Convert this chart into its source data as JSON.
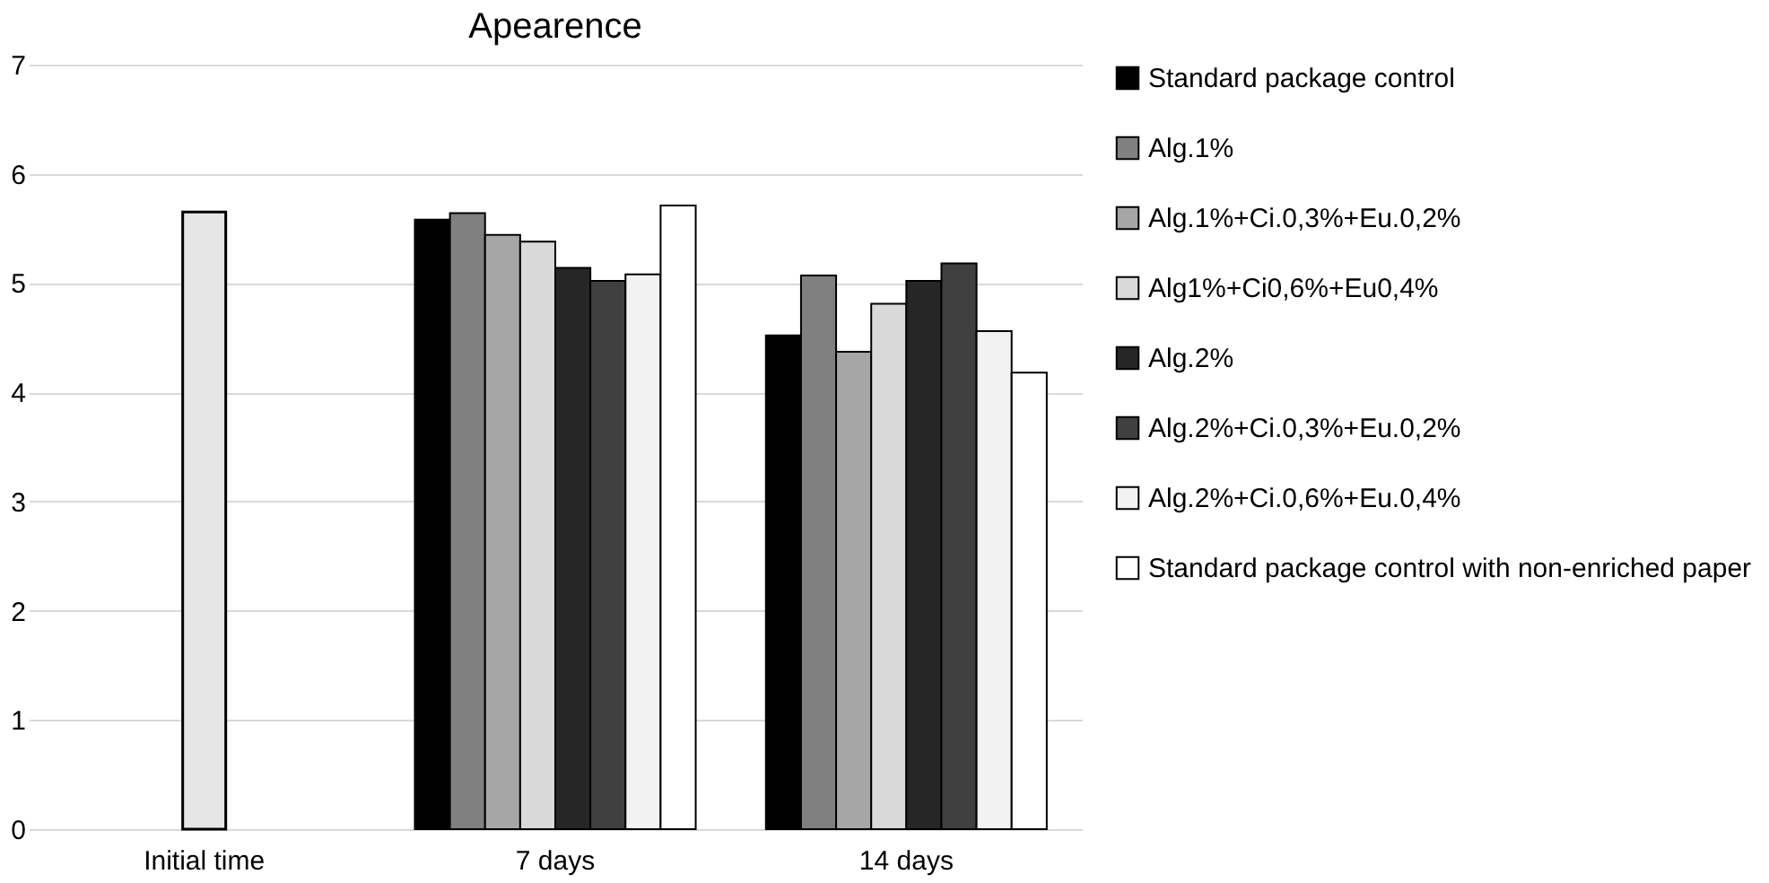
{
  "chart_data": {
    "type": "bar",
    "title": "Apearence",
    "categories": [
      "Initial time",
      "7 days",
      "14 days"
    ],
    "series": [
      {
        "name": "Standard package control",
        "color": "#000000",
        "values": [
          null,
          5.58,
          4.52
        ]
      },
      {
        "name": "Alg.1%",
        "color": "#808080",
        "values": [
          null,
          5.64,
          5.07
        ]
      },
      {
        "name": "Alg.1%+Ci.0,3%+Eu.0,2%",
        "color": "#a6a6a6",
        "values": [
          null,
          5.44,
          4.37
        ]
      },
      {
        "name": "Alg1%+Ci0,6%+Eu0,4%",
        "color": "#d9d9d9",
        "values": [
          null,
          5.38,
          4.81
        ]
      },
      {
        "name": "Alg.2%",
        "color": "#262626",
        "values": [
          null,
          5.14,
          5.02
        ]
      },
      {
        "name": "Alg.2%+Ci.0,3%+Eu.0,2%",
        "color": "#404040",
        "values": [
          null,
          5.02,
          5.18
        ]
      },
      {
        "name": "Alg.2%+Ci.0,6%+Eu.0,4%",
        "color": "#f2f2f2",
        "values": [
          null,
          5.08,
          4.56
        ]
      },
      {
        "name": "Standard  package control with non-enriched paper",
        "color": "#ffffff",
        "values": [
          null,
          5.71,
          4.18
        ]
      },
      {
        "color": "#e6e6e6",
        "values": [
          5.65,
          null,
          null
        ]
      }
    ],
    "ylim": [
      0,
      7
    ],
    "yticks": [
      0,
      1,
      2,
      3,
      4,
      5,
      6,
      7
    ],
    "grid": "y",
    "legend": "right"
  }
}
